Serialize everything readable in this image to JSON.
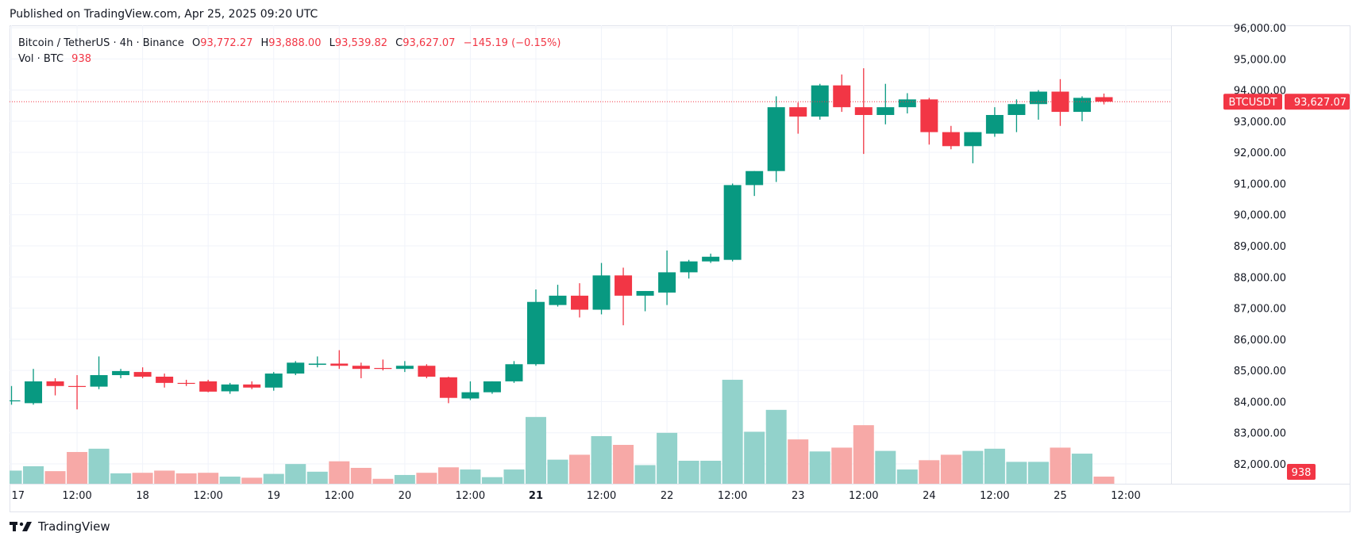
{
  "published": "Published on TradingView.com, Apr 25, 2025 09:20 UTC",
  "legend": {
    "title": "Bitcoin / TetherUS · 4h · Binance",
    "o_label": "O",
    "o_value": "93,772.27",
    "h_label": "H",
    "h_value": "93,888.00",
    "l_label": "L",
    "l_value": "93,539.82",
    "c_label": "C",
    "c_value": "93,627.07",
    "change": "−145.19 (−0.15%)",
    "vol_label": "Vol · BTC",
    "vol_value": "938"
  },
  "price_tag": {
    "symbol": "BTCUSDT",
    "price": "93,627.07"
  },
  "volume_tag": "938",
  "footer": {
    "brand": "TradingView"
  },
  "colors": {
    "up": "#089981",
    "down": "#f23645",
    "vol_up": "#92d2cb",
    "vol_down": "#f7a9a7",
    "grid": "#f0f3fa",
    "text": "#131722"
  },
  "chart_data": {
    "type": "candlestick",
    "symbol": "BTCUSDT",
    "interval": "4h",
    "y_tick_labels": [
      "96,000.00",
      "95,000.00",
      "94,000.00",
      "93,000.00",
      "92,000.00",
      "91,000.00",
      "90,000.00",
      "89,000.00",
      "88,000.00",
      "87,000.00",
      "86,000.00",
      "85,000.00",
      "84,000.00",
      "83,000.00",
      "82,000.00"
    ],
    "ylim": [
      82000,
      96000
    ],
    "x_tick_labels": [
      "17",
      "12:00",
      "18",
      "12:00",
      "19",
      "12:00",
      "20",
      "12:00",
      "21",
      "12:00",
      "22",
      "12:00",
      "23",
      "12:00",
      "24",
      "12:00",
      "25",
      "12:00"
    ],
    "last_price": 93627.07,
    "candles": [
      {
        "o": 84020,
        "h": 84500,
        "l": 83900,
        "c": 84040
      },
      {
        "o": 83950,
        "h": 85050,
        "l": 83900,
        "c": 84650
      },
      {
        "o": 84650,
        "h": 84750,
        "l": 84200,
        "c": 84500
      },
      {
        "o": 84500,
        "h": 84850,
        "l": 83750,
        "c": 84480
      },
      {
        "o": 84480,
        "h": 85450,
        "l": 84400,
        "c": 84850
      },
      {
        "o": 84850,
        "h": 85050,
        "l": 84750,
        "c": 84980
      },
      {
        "o": 84950,
        "h": 85100,
        "l": 84750,
        "c": 84800
      },
      {
        "o": 84800,
        "h": 84900,
        "l": 84450,
        "c": 84600
      },
      {
        "o": 84600,
        "h": 84700,
        "l": 84500,
        "c": 84580
      },
      {
        "o": 84650,
        "h": 84700,
        "l": 84300,
        "c": 84320
      },
      {
        "o": 84330,
        "h": 84600,
        "l": 84250,
        "c": 84550
      },
      {
        "o": 84550,
        "h": 84650,
        "l": 84400,
        "c": 84450
      },
      {
        "o": 84450,
        "h": 84950,
        "l": 84350,
        "c": 84900
      },
      {
        "o": 84900,
        "h": 85300,
        "l": 84850,
        "c": 85250
      },
      {
        "o": 85180,
        "h": 85450,
        "l": 85100,
        "c": 85220
      },
      {
        "o": 85220,
        "h": 85650,
        "l": 85050,
        "c": 85150
      },
      {
        "o": 85150,
        "h": 85250,
        "l": 84750,
        "c": 85050
      },
      {
        "o": 85080,
        "h": 85350,
        "l": 85000,
        "c": 85060
      },
      {
        "o": 85050,
        "h": 85300,
        "l": 84950,
        "c": 85150
      },
      {
        "o": 85150,
        "h": 85200,
        "l": 84750,
        "c": 84800
      },
      {
        "o": 84780,
        "h": 84800,
        "l": 83950,
        "c": 84120
      },
      {
        "o": 84100,
        "h": 84650,
        "l": 84050,
        "c": 84300
      },
      {
        "o": 84300,
        "h": 84650,
        "l": 84250,
        "c": 84650
      },
      {
        "o": 84650,
        "h": 85300,
        "l": 84600,
        "c": 85200
      },
      {
        "o": 85200,
        "h": 87600,
        "l": 85150,
        "c": 87200
      },
      {
        "o": 87100,
        "h": 87750,
        "l": 87050,
        "c": 87400
      },
      {
        "o": 87400,
        "h": 87800,
        "l": 86700,
        "c": 86950
      },
      {
        "o": 86950,
        "h": 88450,
        "l": 86800,
        "c": 88050
      },
      {
        "o": 88050,
        "h": 88300,
        "l": 86450,
        "c": 87400
      },
      {
        "o": 87400,
        "h": 87550,
        "l": 86900,
        "c": 87550
      },
      {
        "o": 87500,
        "h": 88850,
        "l": 87100,
        "c": 88150
      },
      {
        "o": 88150,
        "h": 88550,
        "l": 87950,
        "c": 88500
      },
      {
        "o": 88500,
        "h": 88750,
        "l": 88450,
        "c": 88650
      },
      {
        "o": 88550,
        "h": 91000,
        "l": 88500,
        "c": 90950
      },
      {
        "o": 90950,
        "h": 91400,
        "l": 90600,
        "c": 91400
      },
      {
        "o": 91400,
        "h": 93800,
        "l": 91050,
        "c": 93450
      },
      {
        "o": 93450,
        "h": 93600,
        "l": 92600,
        "c": 93150
      },
      {
        "o": 93150,
        "h": 94200,
        "l": 93050,
        "c": 94150
      },
      {
        "o": 94150,
        "h": 94500,
        "l": 93300,
        "c": 93450
      },
      {
        "o": 93450,
        "h": 94700,
        "l": 91950,
        "c": 93200
      },
      {
        "o": 93200,
        "h": 94200,
        "l": 92900,
        "c": 93450
      },
      {
        "o": 93450,
        "h": 93900,
        "l": 93250,
        "c": 93700
      },
      {
        "o": 93700,
        "h": 93750,
        "l": 92250,
        "c": 92650
      },
      {
        "o": 92650,
        "h": 92850,
        "l": 92100,
        "c": 92200
      },
      {
        "o": 92200,
        "h": 92650,
        "l": 91650,
        "c": 92650
      },
      {
        "o": 92600,
        "h": 93450,
        "l": 92500,
        "c": 93200
      },
      {
        "o": 93200,
        "h": 93700,
        "l": 92650,
        "c": 93550
      },
      {
        "o": 93550,
        "h": 94000,
        "l": 93050,
        "c": 93950
      },
      {
        "o": 93950,
        "h": 94350,
        "l": 92850,
        "c": 93300
      },
      {
        "o": 93300,
        "h": 93800,
        "l": 93000,
        "c": 93750
      },
      {
        "o": 93772.27,
        "h": 93888.0,
        "l": 93539.82,
        "c": 93627.07
      }
    ],
    "volume_rel": [
      0.24,
      0.32,
      0.23,
      0.58,
      0.64,
      0.19,
      0.2,
      0.24,
      0.19,
      0.2,
      0.13,
      0.11,
      0.18,
      0.36,
      0.22,
      0.41,
      0.29,
      0.09,
      0.16,
      0.2,
      0.3,
      0.26,
      0.12,
      0.26,
      1.22,
      0.44,
      0.53,
      0.87,
      0.71,
      0.34,
      0.93,
      0.42,
      0.42,
      1.9,
      0.95,
      1.35,
      0.81,
      0.59,
      0.66,
      1.07,
      0.6,
      0.26,
      0.43,
      0.53,
      0.6,
      0.64,
      0.4,
      0.4,
      0.66,
      0.55,
      0.13
    ]
  }
}
